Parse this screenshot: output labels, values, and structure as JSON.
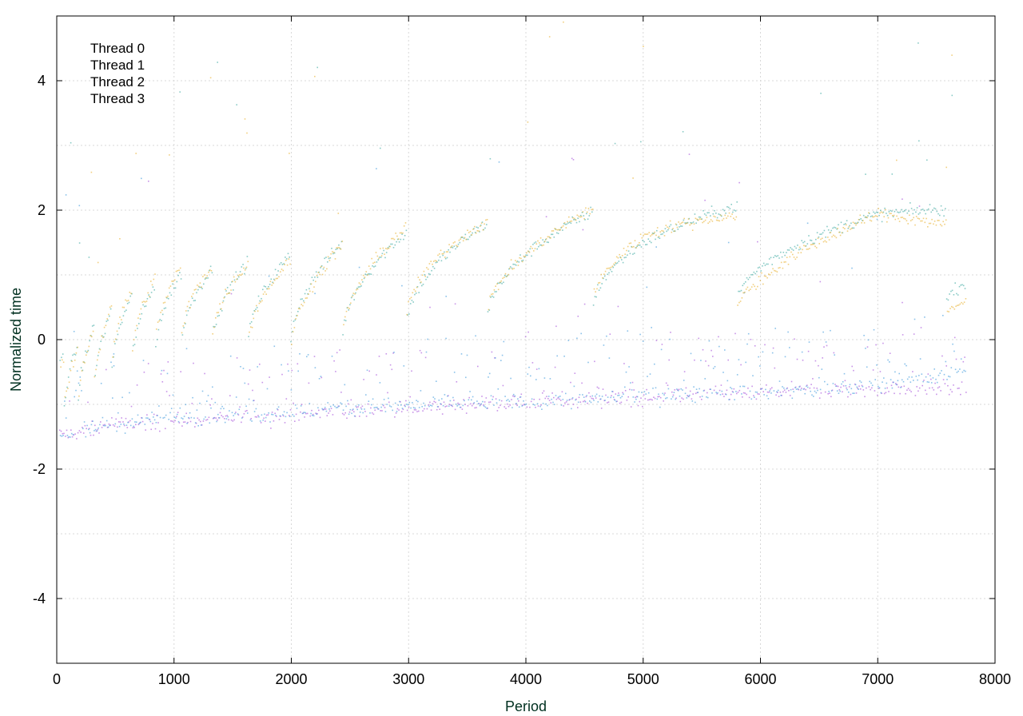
{
  "chart_data": {
    "type": "scatter",
    "title": "",
    "xlabel": "Period",
    "ylabel": "Normalized time",
    "xlim": [
      0,
      8000
    ],
    "ylim": [
      -5,
      5
    ],
    "xticks": [
      0,
      1000,
      2000,
      3000,
      4000,
      5000,
      6000,
      7000,
      8000
    ],
    "yticks": [
      -4,
      -2,
      0,
      2,
      4
    ],
    "xtick_labels": [
      "0",
      "1000",
      "2000",
      "3000",
      "4000",
      "5000",
      "6000",
      "7000",
      "8000"
    ],
    "ytick_labels": [
      "-4",
      "-2",
      "0",
      "2",
      "4"
    ],
    "grid": true,
    "legend_position": "top-left",
    "n_periods": 7750,
    "series": [
      {
        "name": "Thread 0",
        "color": "#9b3dd6",
        "pattern": "lower-band",
        "trend_x": [
          100,
          500,
          1000,
          2000,
          3000,
          4000,
          5000,
          6000,
          7000,
          7750
        ],
        "trend_y": [
          -1.45,
          -1.3,
          -1.25,
          -1.15,
          -1.05,
          -0.95,
          -0.9,
          -0.8,
          -0.75,
          -0.75
        ]
      },
      {
        "name": "Thread 1",
        "color": "#2aa198",
        "pattern": "upper-sawtooth",
        "trend_x": [
          100,
          500,
          1000,
          2000,
          3000,
          4000,
          5000,
          6000,
          7000,
          7750
        ],
        "trend_y": [
          -0.6,
          0.1,
          0.5,
          0.7,
          1.0,
          1.2,
          1.4,
          1.4,
          1.5,
          1.3
        ]
      },
      {
        "name": "Thread 2",
        "color": "#2b8fd8",
        "pattern": "lower-band",
        "trend_x": [
          100,
          500,
          1000,
          2000,
          3000,
          4000,
          5000,
          6000,
          7000,
          7750
        ],
        "trend_y": [
          -1.45,
          -1.3,
          -1.2,
          -1.1,
          -1.0,
          -0.95,
          -0.85,
          -0.8,
          -0.7,
          -0.5
        ]
      },
      {
        "name": "Thread 3",
        "color": "#e6a817",
        "pattern": "upper-sawtooth",
        "trend_x": [
          100,
          500,
          1000,
          2000,
          3000,
          4000,
          5000,
          6000,
          7000,
          7750
        ],
        "trend_y": [
          -0.7,
          0.2,
          0.6,
          0.6,
          1.1,
          1.2,
          1.5,
          1.2,
          1.5,
          1.0
        ]
      }
    ]
  }
}
